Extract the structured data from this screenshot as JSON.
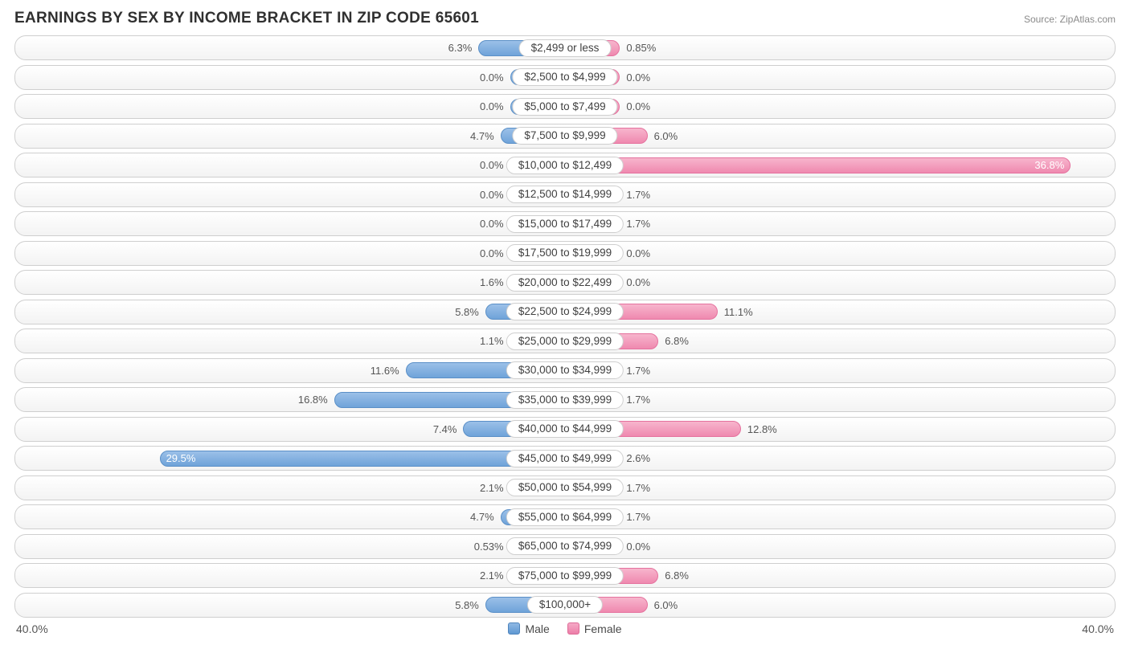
{
  "title": "EARNINGS BY SEX BY INCOME BRACKET IN ZIP CODE 65601",
  "source": "Source: ZipAtlas.com",
  "axis_max_label": "40.0%",
  "axis_max_value": 40.0,
  "legend": {
    "male": "Male",
    "female": "Female"
  },
  "colors": {
    "male_bar": "#6fa3d9",
    "female_bar": "#ef89af",
    "row_border": "#cfcfcf",
    "text": "#565656",
    "background": "#ffffff"
  },
  "min_bar_pct": 4.0,
  "rows": [
    {
      "label": "$2,499 or less",
      "male": 6.3,
      "male_txt": "6.3%",
      "female": 0.85,
      "female_txt": "0.85%"
    },
    {
      "label": "$2,500 to $4,999",
      "male": 0.0,
      "male_txt": "0.0%",
      "female": 0.0,
      "female_txt": "0.0%"
    },
    {
      "label": "$5,000 to $7,499",
      "male": 0.0,
      "male_txt": "0.0%",
      "female": 0.0,
      "female_txt": "0.0%"
    },
    {
      "label": "$7,500 to $9,999",
      "male": 4.7,
      "male_txt": "4.7%",
      "female": 6.0,
      "female_txt": "6.0%"
    },
    {
      "label": "$10,000 to $12,499",
      "male": 0.0,
      "male_txt": "0.0%",
      "female": 36.8,
      "female_txt": "36.8%"
    },
    {
      "label": "$12,500 to $14,999",
      "male": 0.0,
      "male_txt": "0.0%",
      "female": 1.7,
      "female_txt": "1.7%"
    },
    {
      "label": "$15,000 to $17,499",
      "male": 0.0,
      "male_txt": "0.0%",
      "female": 1.7,
      "female_txt": "1.7%"
    },
    {
      "label": "$17,500 to $19,999",
      "male": 0.0,
      "male_txt": "0.0%",
      "female": 0.0,
      "female_txt": "0.0%"
    },
    {
      "label": "$20,000 to $22,499",
      "male": 1.6,
      "male_txt": "1.6%",
      "female": 0.0,
      "female_txt": "0.0%"
    },
    {
      "label": "$22,500 to $24,999",
      "male": 5.8,
      "male_txt": "5.8%",
      "female": 11.1,
      "female_txt": "11.1%"
    },
    {
      "label": "$25,000 to $29,999",
      "male": 1.1,
      "male_txt": "1.1%",
      "female": 6.8,
      "female_txt": "6.8%"
    },
    {
      "label": "$30,000 to $34,999",
      "male": 11.6,
      "male_txt": "11.6%",
      "female": 1.7,
      "female_txt": "1.7%"
    },
    {
      "label": "$35,000 to $39,999",
      "male": 16.8,
      "male_txt": "16.8%",
      "female": 1.7,
      "female_txt": "1.7%"
    },
    {
      "label": "$40,000 to $44,999",
      "male": 7.4,
      "male_txt": "7.4%",
      "female": 12.8,
      "female_txt": "12.8%"
    },
    {
      "label": "$45,000 to $49,999",
      "male": 29.5,
      "male_txt": "29.5%",
      "female": 2.6,
      "female_txt": "2.6%"
    },
    {
      "label": "$50,000 to $54,999",
      "male": 2.1,
      "male_txt": "2.1%",
      "female": 1.7,
      "female_txt": "1.7%"
    },
    {
      "label": "$55,000 to $64,999",
      "male": 4.7,
      "male_txt": "4.7%",
      "female": 1.7,
      "female_txt": "1.7%"
    },
    {
      "label": "$65,000 to $74,999",
      "male": 0.53,
      "male_txt": "0.53%",
      "female": 0.0,
      "female_txt": "0.0%"
    },
    {
      "label": "$75,000 to $99,999",
      "male": 2.1,
      "male_txt": "2.1%",
      "female": 6.8,
      "female_txt": "6.8%"
    },
    {
      "label": "$100,000+",
      "male": 5.8,
      "male_txt": "5.8%",
      "female": 6.0,
      "female_txt": "6.0%"
    }
  ]
}
